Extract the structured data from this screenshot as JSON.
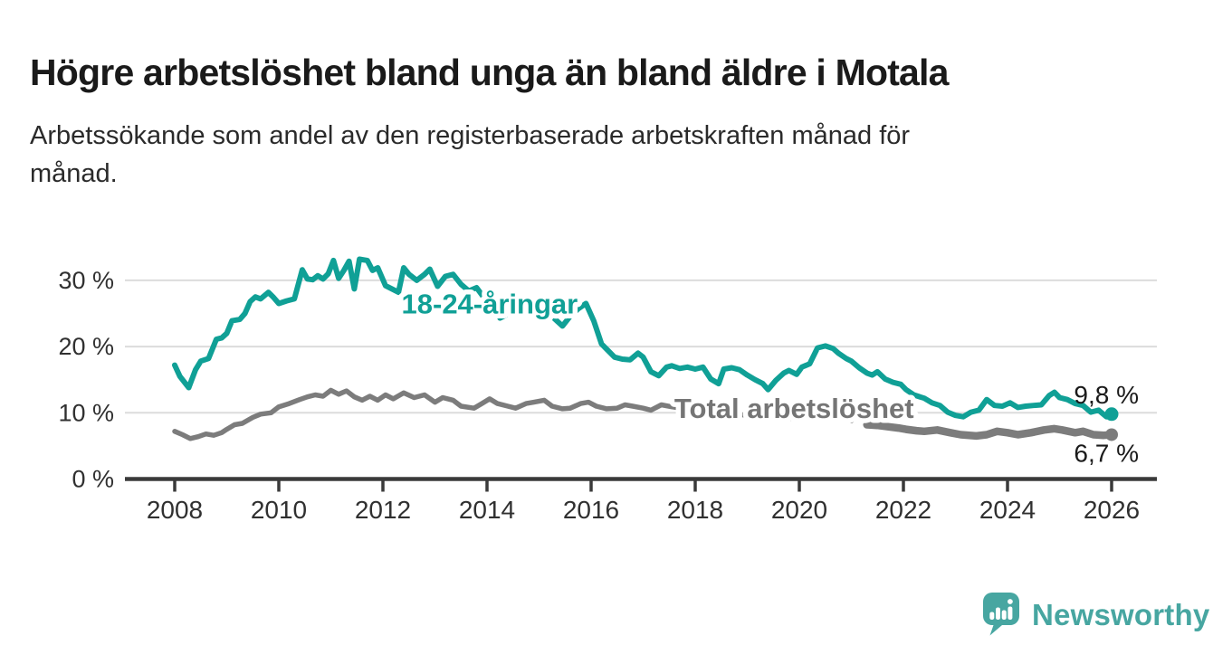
{
  "header": {
    "title": "Högre arbetslöshet bland unga än bland äldre i Motala",
    "subtitle": "Arbetssökande som andel av den registerbaserade arbetskraften månad för månad.",
    "subtitle_lines": [
      "Arbetssökande som andel av den registerbaserade arbetskraften månad för",
      "månad."
    ]
  },
  "footer": {
    "brand": "Newsworthy",
    "logo_icon": "speech-bubble-with-bar-chart-and-exclamation"
  },
  "colors": {
    "young_series": "#10a096",
    "total_series": "#7c7c7c",
    "total_label": "#757575",
    "grid": "#dcdcdc",
    "axis": "#3a3a3a",
    "value_label_text": "#1a1a1a",
    "brand_teal": "#47a6a1"
  },
  "chart_data": {
    "type": "line",
    "title": "Högre arbetslöshet bland unga än bland äldre i Motala",
    "subtitle": "Arbetssökande som andel av den registerbaserade arbetskraften månad för månad.",
    "xlabel": "",
    "ylabel": "",
    "xlim": [
      2008,
      2026.9
    ],
    "ylim": [
      0,
      35
    ],
    "grid": true,
    "legend_position": "inline-labels",
    "xticks": [
      2008,
      2010,
      2012,
      2014,
      2016,
      2018,
      2020,
      2022,
      2024,
      2026
    ],
    "yticks": [
      {
        "value": 0,
        "label": "0 %"
      },
      {
        "value": 10,
        "label": "10 %"
      },
      {
        "value": 20,
        "label": "20 %"
      },
      {
        "value": 30,
        "label": "30 %"
      }
    ],
    "series": [
      {
        "name": "18-24-åringar",
        "color": "#10a096",
        "line_width": 6,
        "end_dot": true,
        "end_value": 9.8,
        "end_value_label": "9,8 %",
        "end_label_position": "above",
        "inline_label": {
          "text": "18-24-åringar",
          "year": 2014.05,
          "value": 26.4
        },
        "values": [
          [
            2008.0,
            17.2
          ],
          [
            2008.1,
            15.5
          ],
          [
            2008.27,
            13.8
          ],
          [
            2008.4,
            16.5
          ],
          [
            2008.5,
            17.8
          ],
          [
            2008.65,
            18.2
          ],
          [
            2008.8,
            21.1
          ],
          [
            2008.9,
            21.3
          ],
          [
            2009.0,
            22.0
          ],
          [
            2009.1,
            23.9
          ],
          [
            2009.25,
            24.1
          ],
          [
            2009.35,
            25.0
          ],
          [
            2009.45,
            26.8
          ],
          [
            2009.55,
            27.5
          ],
          [
            2009.65,
            27.2
          ],
          [
            2009.8,
            28.2
          ],
          [
            2009.9,
            27.4
          ],
          [
            2010.0,
            26.5
          ],
          [
            2010.15,
            26.9
          ],
          [
            2010.3,
            27.2
          ],
          [
            2010.45,
            31.6
          ],
          [
            2010.55,
            30.2
          ],
          [
            2010.65,
            30.1
          ],
          [
            2010.75,
            30.7
          ],
          [
            2010.85,
            30.2
          ],
          [
            2010.95,
            31.0
          ],
          [
            2011.05,
            33.0
          ],
          [
            2011.15,
            30.3
          ],
          [
            2011.25,
            31.5
          ],
          [
            2011.35,
            32.9
          ],
          [
            2011.45,
            28.7
          ],
          [
            2011.55,
            33.2
          ],
          [
            2011.7,
            33.0
          ],
          [
            2011.8,
            31.5
          ],
          [
            2011.9,
            31.9
          ],
          [
            2012.05,
            29.2
          ],
          [
            2012.15,
            28.8
          ],
          [
            2012.3,
            28.2
          ],
          [
            2012.4,
            31.9
          ],
          [
            2012.5,
            30.9
          ],
          [
            2012.65,
            30.0
          ],
          [
            2012.8,
            30.9
          ],
          [
            2012.9,
            31.7
          ],
          [
            2013.05,
            29.1
          ],
          [
            2013.2,
            30.6
          ],
          [
            2013.35,
            30.9
          ],
          [
            2013.5,
            29.4
          ],
          [
            2013.65,
            28.4
          ],
          [
            2013.8,
            28.9
          ],
          [
            2013.95,
            27.3
          ],
          [
            2014.1,
            26.2
          ],
          [
            2014.25,
            24.3
          ],
          [
            2014.4,
            24.9
          ],
          [
            2014.55,
            25.8
          ],
          [
            2014.7,
            25.6
          ],
          [
            2014.85,
            25.2
          ],
          [
            2015.0,
            25.4
          ],
          [
            2015.15,
            25.1
          ],
          [
            2015.3,
            24.2
          ],
          [
            2015.45,
            23.1
          ],
          [
            2015.6,
            24.6
          ],
          [
            2015.75,
            25.7
          ],
          [
            2015.9,
            26.5
          ],
          [
            2016.05,
            23.9
          ],
          [
            2016.2,
            20.4
          ],
          [
            2016.3,
            19.6
          ],
          [
            2016.45,
            18.4
          ],
          [
            2016.6,
            18.1
          ],
          [
            2016.75,
            18.0
          ],
          [
            2016.9,
            19.0
          ],
          [
            2017.0,
            18.4
          ],
          [
            2017.15,
            16.2
          ],
          [
            2017.3,
            15.6
          ],
          [
            2017.45,
            16.9
          ],
          [
            2017.55,
            17.1
          ],
          [
            2017.7,
            16.7
          ],
          [
            2017.85,
            16.9
          ],
          [
            2018.0,
            16.6
          ],
          [
            2018.15,
            16.9
          ],
          [
            2018.3,
            15.1
          ],
          [
            2018.45,
            14.4
          ],
          [
            2018.55,
            16.6
          ],
          [
            2018.7,
            16.8
          ],
          [
            2018.85,
            16.5
          ],
          [
            2019.0,
            15.7
          ],
          [
            2019.15,
            15.0
          ],
          [
            2019.3,
            14.4
          ],
          [
            2019.4,
            13.5
          ],
          [
            2019.55,
            14.9
          ],
          [
            2019.7,
            16.0
          ],
          [
            2019.8,
            16.4
          ],
          [
            2019.95,
            15.8
          ],
          [
            2020.05,
            16.9
          ],
          [
            2020.2,
            17.4
          ],
          [
            2020.35,
            19.8
          ],
          [
            2020.5,
            20.1
          ],
          [
            2020.65,
            19.7
          ],
          [
            2020.75,
            19.0
          ],
          [
            2020.9,
            18.2
          ],
          [
            2021.0,
            17.8
          ],
          [
            2021.15,
            16.8
          ],
          [
            2021.3,
            16.0
          ],
          [
            2021.4,
            15.7
          ],
          [
            2021.5,
            16.2
          ],
          [
            2021.65,
            15.1
          ],
          [
            2021.8,
            14.6
          ],
          [
            2021.95,
            14.3
          ],
          [
            2022.05,
            13.5
          ],
          [
            2022.2,
            12.7
          ],
          [
            2022.4,
            12.2
          ],
          [
            2022.55,
            11.5
          ],
          [
            2022.7,
            11.1
          ],
          [
            2022.85,
            10.1
          ],
          [
            2023.0,
            9.6
          ],
          [
            2023.15,
            9.4
          ],
          [
            2023.3,
            10.1
          ],
          [
            2023.45,
            10.4
          ],
          [
            2023.6,
            12.0
          ],
          [
            2023.75,
            11.1
          ],
          [
            2023.9,
            11.0
          ],
          [
            2024.05,
            11.5
          ],
          [
            2024.2,
            10.8
          ],
          [
            2024.35,
            11.0
          ],
          [
            2024.5,
            11.1
          ],
          [
            2024.65,
            11.2
          ],
          [
            2024.8,
            12.6
          ],
          [
            2024.9,
            13.1
          ],
          [
            2025.0,
            12.3
          ],
          [
            2025.15,
            12.0
          ],
          [
            2025.3,
            11.4
          ],
          [
            2025.45,
            11.1
          ],
          [
            2025.6,
            10.1
          ],
          [
            2025.75,
            10.4
          ],
          [
            2025.9,
            9.4
          ],
          [
            2026.0,
            9.8
          ]
        ]
      },
      {
        "name": "Total arbetslöshet",
        "color": "#7c7c7c",
        "label_color": "#757575",
        "line_width": 5.5,
        "emphasis": {
          "from_year": 2021.25,
          "line_width": 8.5
        },
        "end_dot": true,
        "end_value": 6.7,
        "end_value_label": "6,7 %",
        "end_label_position": "below",
        "inline_label": {
          "text": "Total arbetslöshet",
          "year": 2019.9,
          "value": 10.6
        },
        "values": [
          [
            2008.0,
            7.2
          ],
          [
            2008.15,
            6.7
          ],
          [
            2008.3,
            6.1
          ],
          [
            2008.45,
            6.4
          ],
          [
            2008.6,
            6.8
          ],
          [
            2008.75,
            6.6
          ],
          [
            2008.9,
            7.0
          ],
          [
            2009.0,
            7.5
          ],
          [
            2009.15,
            8.2
          ],
          [
            2009.3,
            8.4
          ],
          [
            2009.5,
            9.3
          ],
          [
            2009.65,
            9.8
          ],
          [
            2009.85,
            10.0
          ],
          [
            2010.0,
            10.9
          ],
          [
            2010.2,
            11.4
          ],
          [
            2010.4,
            12.0
          ],
          [
            2010.55,
            12.4
          ],
          [
            2010.7,
            12.7
          ],
          [
            2010.85,
            12.5
          ],
          [
            2011.0,
            13.4
          ],
          [
            2011.15,
            12.8
          ],
          [
            2011.3,
            13.3
          ],
          [
            2011.45,
            12.4
          ],
          [
            2011.6,
            11.9
          ],
          [
            2011.75,
            12.5
          ],
          [
            2011.9,
            11.9
          ],
          [
            2012.05,
            12.7
          ],
          [
            2012.2,
            12.1
          ],
          [
            2012.4,
            13.0
          ],
          [
            2012.6,
            12.3
          ],
          [
            2012.8,
            12.7
          ],
          [
            2013.0,
            11.6
          ],
          [
            2013.15,
            12.3
          ],
          [
            2013.35,
            11.9
          ],
          [
            2013.5,
            11.0
          ],
          [
            2013.75,
            10.7
          ],
          [
            2013.9,
            11.4
          ],
          [
            2014.05,
            12.1
          ],
          [
            2014.2,
            11.4
          ],
          [
            2014.4,
            11.0
          ],
          [
            2014.55,
            10.7
          ],
          [
            2014.75,
            11.4
          ],
          [
            2014.9,
            11.6
          ],
          [
            2015.1,
            11.9
          ],
          [
            2015.25,
            11.0
          ],
          [
            2015.45,
            10.6
          ],
          [
            2015.6,
            10.7
          ],
          [
            2015.8,
            11.4
          ],
          [
            2015.95,
            11.6
          ],
          [
            2016.1,
            11.0
          ],
          [
            2016.3,
            10.6
          ],
          [
            2016.5,
            10.7
          ],
          [
            2016.65,
            11.2
          ],
          [
            2016.8,
            11.0
          ],
          [
            2017.0,
            10.7
          ],
          [
            2017.15,
            10.4
          ],
          [
            2017.35,
            11.2
          ],
          [
            2017.55,
            10.9
          ],
          [
            2017.8,
            10.6
          ],
          [
            2018.0,
            10.3
          ],
          [
            2018.25,
            10.1
          ],
          [
            2018.5,
            9.9
          ],
          [
            2018.75,
            9.8
          ],
          [
            2019.0,
            9.6
          ],
          [
            2019.25,
            9.4
          ],
          [
            2019.5,
            9.2
          ],
          [
            2019.75,
            9.1
          ],
          [
            2020.0,
            9.3
          ],
          [
            2020.25,
            9.6
          ],
          [
            2020.5,
            9.7
          ],
          [
            2020.75,
            9.3
          ],
          [
            2021.0,
            8.8
          ],
          [
            2021.3,
            8.2
          ],
          [
            2021.5,
            8.1
          ],
          [
            2021.7,
            7.9
          ],
          [
            2021.9,
            7.7
          ],
          [
            2022.05,
            7.5
          ],
          [
            2022.25,
            7.3
          ],
          [
            2022.4,
            7.2
          ],
          [
            2022.65,
            7.4
          ],
          [
            2022.9,
            7.0
          ],
          [
            2023.1,
            6.7
          ],
          [
            2023.4,
            6.5
          ],
          [
            2023.6,
            6.7
          ],
          [
            2023.8,
            7.2
          ],
          [
            2024.0,
            7.0
          ],
          [
            2024.2,
            6.7
          ],
          [
            2024.45,
            7.0
          ],
          [
            2024.7,
            7.4
          ],
          [
            2024.9,
            7.6
          ],
          [
            2025.05,
            7.4
          ],
          [
            2025.3,
            7.0
          ],
          [
            2025.45,
            7.2
          ],
          [
            2025.65,
            6.7
          ],
          [
            2025.85,
            6.6
          ],
          [
            2026.0,
            6.7
          ]
        ]
      }
    ]
  }
}
